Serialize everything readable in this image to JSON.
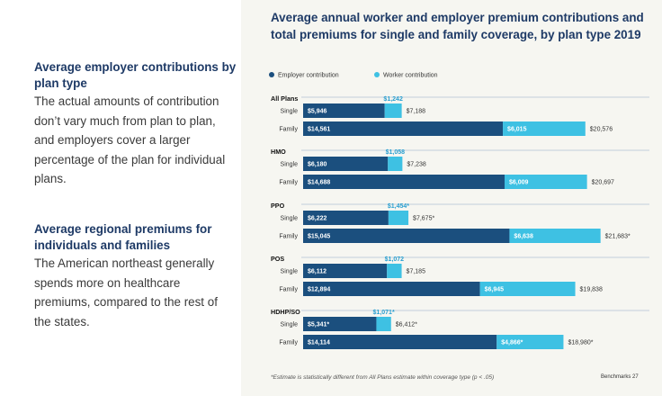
{
  "left": {
    "section1": {
      "heading": "Average employer contributions by plan type",
      "body": "The actual amounts of contribution don’t vary much from plan to plan, and employers cover a larger percentage of the plan for individual plans."
    },
    "section2": {
      "heading": "Average regional premiums for individuals and families",
      "body": "The American northeast generally spends more on healthcare premiums, compared to the rest of the states."
    }
  },
  "chart_data": {
    "type": "bar",
    "orientation": "horizontal",
    "stacked": true,
    "title": "Average annual worker and employer premium contributions and total premiums for single and family coverage, by plan type 2019",
    "legend": [
      "Employer contribution",
      "Worker contribution"
    ],
    "colors": {
      "employer": "#1b4f7e",
      "worker": "#3ec1e3"
    },
    "groups": [
      {
        "name": "All Plans",
        "rows": [
          {
            "label": "Single",
            "employer": 5946,
            "worker": 1242,
            "total": 7188,
            "employer_label": "$5,946",
            "worker_label": "$1,242",
            "total_label": "$7,188"
          },
          {
            "label": "Family",
            "employer": 14561,
            "worker": 6015,
            "total": 20576,
            "employer_label": "$14,561",
            "worker_label": "$6,015",
            "total_label": "$20,576"
          }
        ]
      },
      {
        "name": "HMO",
        "rows": [
          {
            "label": "Single",
            "employer": 6180,
            "worker": 1058,
            "total": 7238,
            "employer_label": "$6,180",
            "worker_label": "$1,058",
            "total_label": "$7,238"
          },
          {
            "label": "Family",
            "employer": 14688,
            "worker": 6009,
            "total": 20697,
            "employer_label": "$14,688",
            "worker_label": "$6,009",
            "total_label": "$20,697"
          }
        ]
      },
      {
        "name": "PPO",
        "rows": [
          {
            "label": "Single",
            "employer": 6222,
            "worker": 1454,
            "total": 7675,
            "employer_label": "$6,222",
            "worker_label": "$1,454*",
            "total_label": "$7,675*"
          },
          {
            "label": "Family",
            "employer": 15045,
            "worker": 6638,
            "total": 21683,
            "employer_label": "$15,045",
            "worker_label": "$6,638",
            "total_label": "$21,683*"
          }
        ]
      },
      {
        "name": "POS",
        "rows": [
          {
            "label": "Single",
            "employer": 6112,
            "worker": 1072,
            "total": 7185,
            "employer_label": "$6,112",
            "worker_label": "$1,072",
            "total_label": "$7,185"
          },
          {
            "label": "Family",
            "employer": 12894,
            "worker": 6945,
            "total": 19838,
            "employer_label": "$12,894",
            "worker_label": "$6,945",
            "total_label": "$19,838"
          }
        ]
      },
      {
        "name": "HDHP/SO",
        "rows": [
          {
            "label": "Single",
            "employer": 5341,
            "worker": 1071,
            "total": 6412,
            "employer_label": "$5,341*",
            "worker_label": "$1,071*",
            "total_label": "$6,412*"
          },
          {
            "label": "Family",
            "employer": 14114,
            "worker": 4866,
            "total": 18980,
            "employer_label": "$14,114",
            "worker_label": "$4,866*",
            "total_label": "$18,980*"
          }
        ]
      }
    ],
    "footnote": "*Estimate is statistically different from All Plans estimate within coverage type (p < .05)"
  },
  "page_label": "Benchmarks   27"
}
